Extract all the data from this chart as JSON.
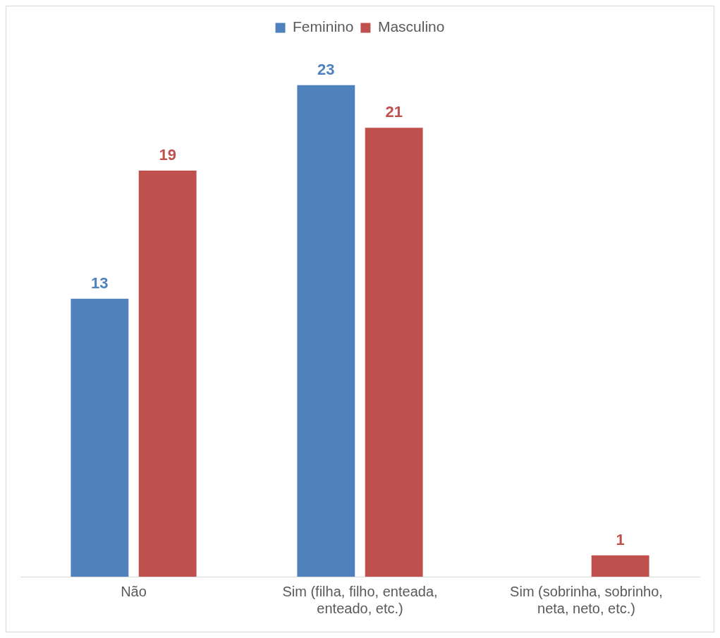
{
  "chart_data": {
    "type": "bar",
    "categories": [
      "Não",
      "Sim (filha, filho, enteada, enteado, etc.)",
      "Sim (sobrinha, sobrinho, neta, neto, etc.)"
    ],
    "series": [
      {
        "name": "Feminino",
        "color": "#4f81bd",
        "values": [
          13,
          23,
          null
        ]
      },
      {
        "name": "Masculino",
        "color": "#c0504d",
        "values": [
          19,
          21,
          1
        ]
      }
    ],
    "data_labels": true,
    "legend": "top",
    "grid": false
  }
}
